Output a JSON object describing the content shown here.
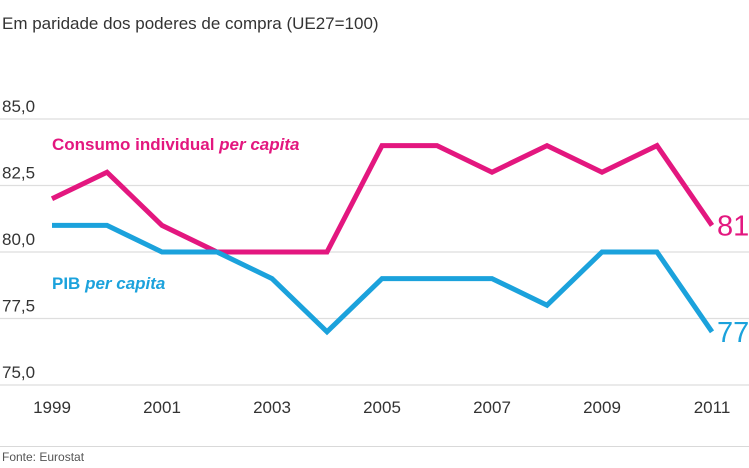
{
  "chart_data": {
    "type": "line",
    "title": "",
    "subtitle": "Em paridade dos poderes de compra (UE27=100)",
    "xlabel": "",
    "ylabel": "",
    "x": [
      1999,
      2000,
      2001,
      2002,
      2003,
      2004,
      2005,
      2006,
      2007,
      2008,
      2009,
      2010,
      2011
    ],
    "x_tick_labels": [
      "1999",
      "2001",
      "2003",
      "2005",
      "2007",
      "2009",
      "2011"
    ],
    "y_ticks": [
      75.0,
      77.5,
      80.0,
      82.5,
      85.0
    ],
    "y_tick_labels": [
      "75,0",
      "77,5",
      "80,0",
      "82,5",
      "85,0"
    ],
    "ylim": [
      75,
      85
    ],
    "grid": true,
    "series": [
      {
        "name": "Consumo individual per capita",
        "label_main": "Consumo individual ",
        "label_italic": "per capita",
        "color": "#e3177f",
        "values": [
          82,
          83,
          81,
          80,
          80,
          80,
          84,
          84,
          83,
          84,
          83,
          84,
          81
        ],
        "end_label": "81"
      },
      {
        "name": "PIB per capita",
        "label_main": "PIB ",
        "label_italic": "per capita",
        "color": "#1ba2dc",
        "values": [
          81,
          81,
          80,
          80,
          79,
          77,
          79,
          79,
          79,
          78,
          80,
          80,
          77
        ],
        "end_label": "77"
      }
    ],
    "source": "Fonte: Eurostat"
  }
}
